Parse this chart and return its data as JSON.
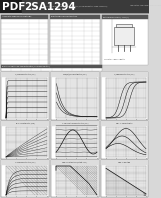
{
  "title_pdf": "PDF",
  "title_part": "2SA1294",
  "bg_header": "#1a1a1a",
  "bg_header2": "#555555",
  "bg_page": "#d8d8d8",
  "bg_white": "#ffffff",
  "bg_table_hdr": "#666666",
  "text_white": "#ffffff",
  "text_dark": "#111111",
  "grid_major": "#888888",
  "grid_minor": "#bbbbbb",
  "curve_color": "#222222",
  "chart_titles": [
    "IC/VCE Characteristics (Typ.)",
    "VCE(sat)/IC Characteristics (Typ.)",
    "IC/VBE Characteristics (Typ.)",
    "IB-IC Characteristics (Typ.)",
    "Ic Temperature Characteristics (Typ.)",
    "hFE - IC Characteristics",
    "IC-VCE Characteristics (Typ.)",
    "Safe Operating Area (Output Char.)",
    "VBE - Ic Derating"
  ]
}
